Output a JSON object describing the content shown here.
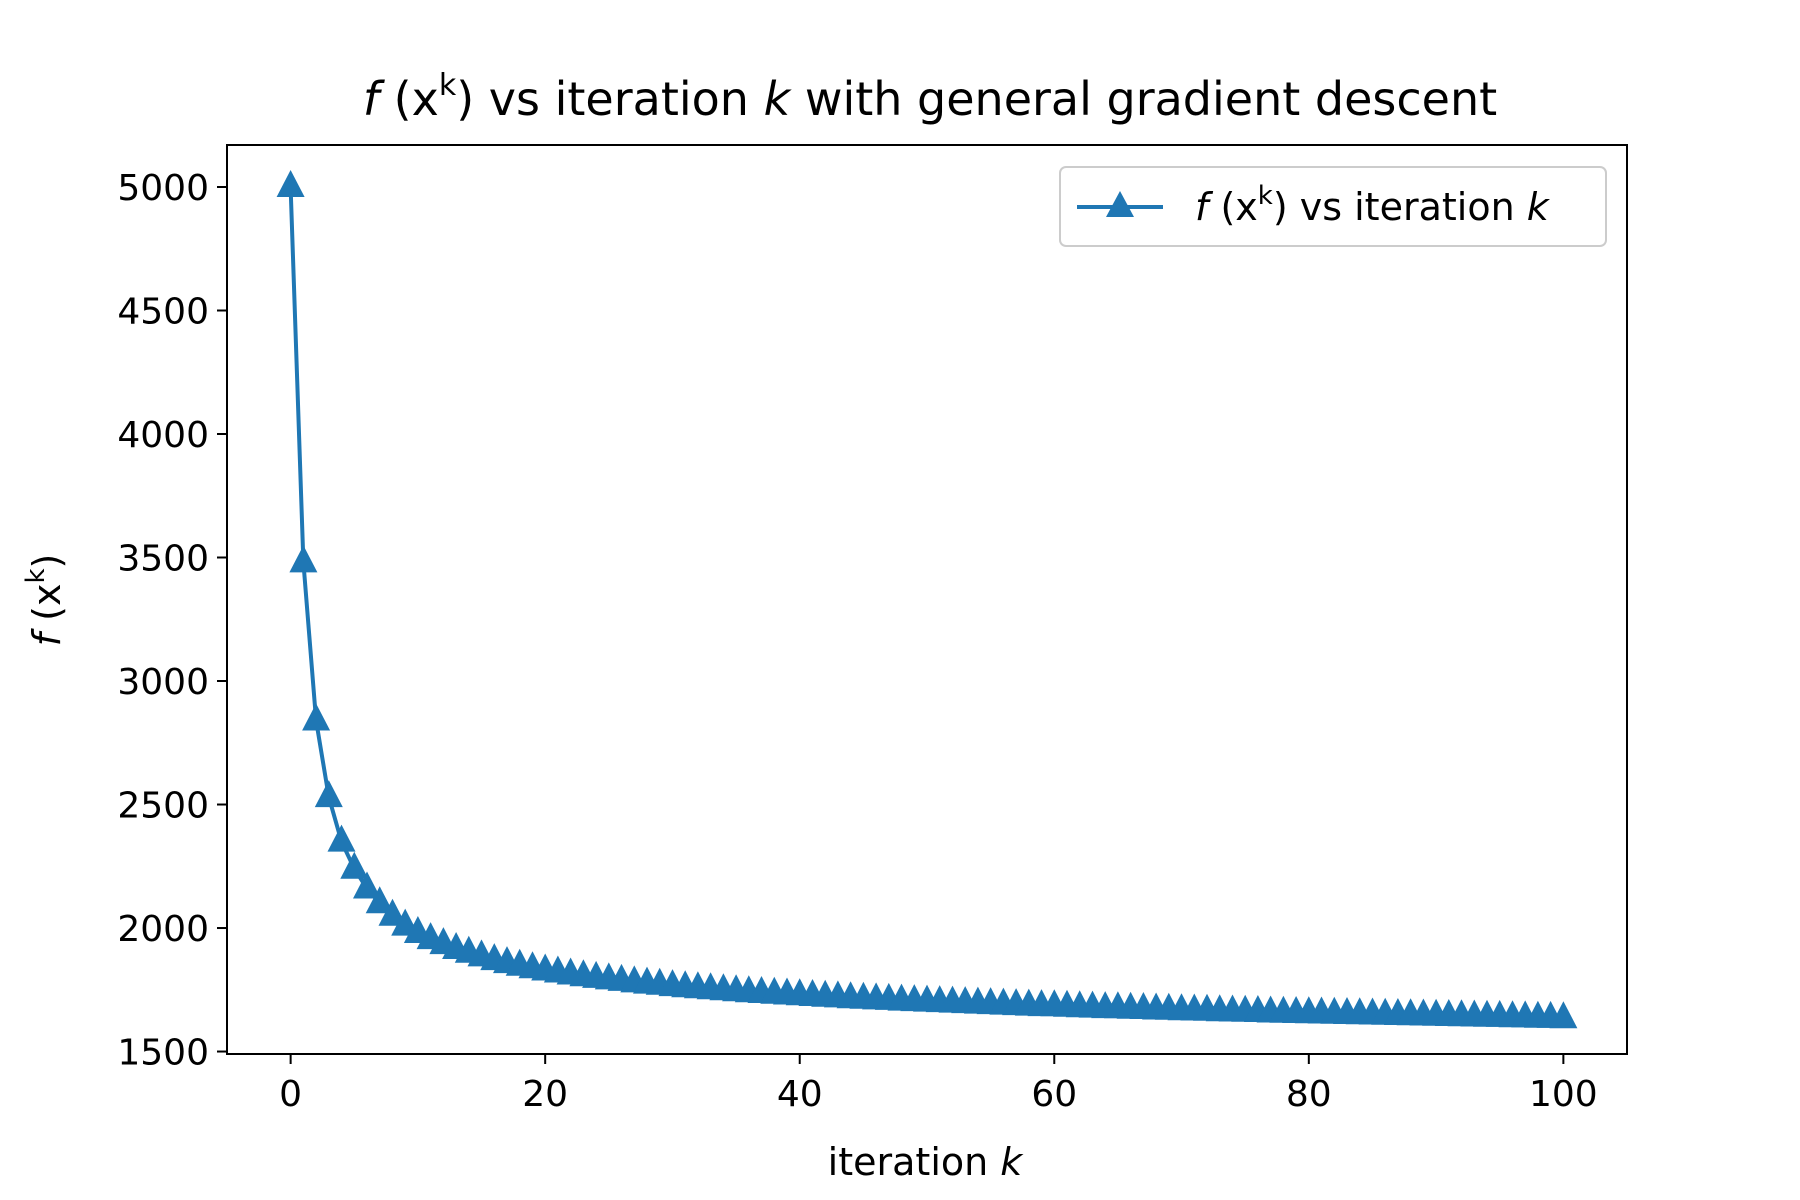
{
  "chart_data": {
    "type": "line",
    "title": {
      "prefix": "f",
      "open": " (x",
      "sup": "k",
      "mid": ") vs iteration ",
      "var": "k",
      "suffix": " with general gradient descent"
    },
    "xlabel": {
      "text": "iteration ",
      "var": "k"
    },
    "ylabel": {
      "prefix": "f",
      "open": " (x",
      "sup": "k",
      "close": ")"
    },
    "xlim": [
      -5,
      105
    ],
    "ylim": [
      1490,
      5170
    ],
    "x_ticks": [
      "0",
      "20",
      "40",
      "60",
      "80",
      "100"
    ],
    "y_ticks": [
      "1500",
      "2000",
      "2500",
      "3000",
      "3500",
      "4000",
      "4500",
      "5000"
    ],
    "legend": {
      "position": "upper right",
      "prefix": "f",
      "open": " (x",
      "sup": "k",
      "mid": ") vs iteration ",
      "var": "k"
    },
    "series": [
      {
        "color": "#1f77b4",
        "marker": "triangle-up",
        "x_start": 0,
        "x_step": 1,
        "y": [
          5000,
          3480,
          2840,
          2530,
          2350,
          2240,
          2160,
          2100,
          2050,
          2010,
          1980,
          1955,
          1935,
          1915,
          1900,
          1885,
          1870,
          1858,
          1847,
          1837,
          1828,
          1820,
          1812,
          1805,
          1798,
          1792,
          1786,
          1780,
          1775,
          1770,
          1765,
          1760,
          1756,
          1752,
          1748,
          1744,
          1740,
          1737,
          1734,
          1731,
          1728,
          1725,
          1722,
          1719,
          1716,
          1714,
          1711,
          1709,
          1706,
          1704,
          1702,
          1700,
          1698,
          1696,
          1694,
          1692,
          1690,
          1688,
          1686,
          1684,
          1683,
          1681,
          1679,
          1678,
          1676,
          1675,
          1673,
          1672,
          1670,
          1669,
          1667,
          1666,
          1665,
          1663,
          1662,
          1661,
          1660,
          1658,
          1657,
          1656,
          1655,
          1654,
          1653,
          1652,
          1651,
          1650,
          1649,
          1648,
          1647,
          1646,
          1645,
          1644,
          1643,
          1642,
          1641,
          1640,
          1639,
          1638,
          1637,
          1636,
          1635
        ]
      }
    ]
  }
}
